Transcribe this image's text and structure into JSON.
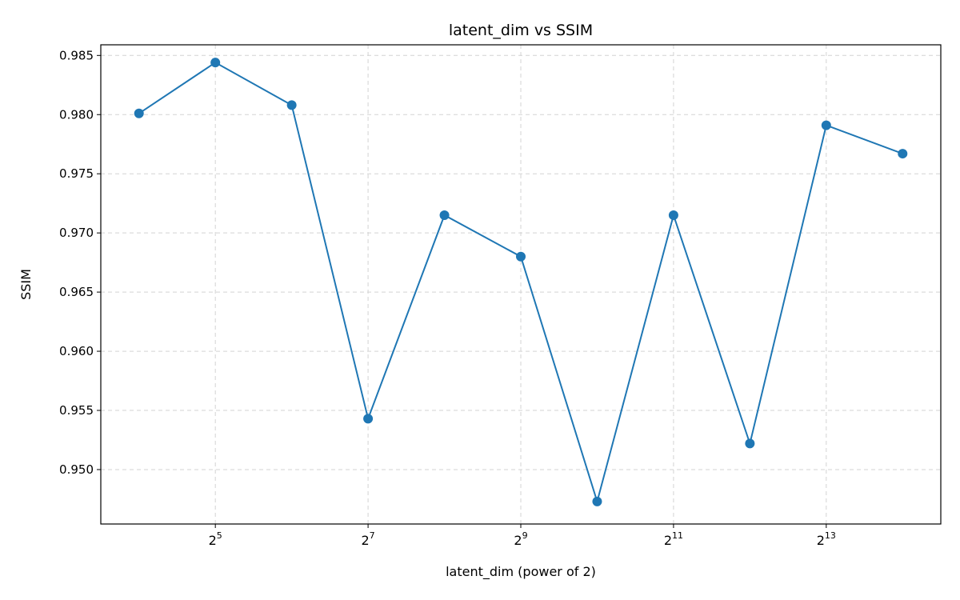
{
  "chart_data": {
    "type": "line",
    "title": "latent_dim vs SSIM",
    "xlabel": "latent_dim (power of 2)",
    "ylabel": "SSIM",
    "x_scale": "log2",
    "x": [
      16,
      32,
      64,
      128,
      256,
      512,
      1024,
      2048,
      4096,
      8192,
      16384
    ],
    "series": [
      {
        "values": [
          0.9801,
          0.9844,
          0.9808,
          0.9543,
          0.9715,
          0.968,
          0.9473,
          0.9715,
          0.9522,
          0.9791,
          0.9767
        ]
      }
    ],
    "x_ticks": [
      {
        "value": 32,
        "base": "2",
        "exp": "5"
      },
      {
        "value": 128,
        "base": "2",
        "exp": "7"
      },
      {
        "value": 512,
        "base": "2",
        "exp": "9"
      },
      {
        "value": 2048,
        "base": "2",
        "exp": "11"
      },
      {
        "value": 8192,
        "base": "2",
        "exp": "13"
      }
    ],
    "y_ticks": [
      "0.950",
      "0.955",
      "0.960",
      "0.965",
      "0.970",
      "0.975",
      "0.980",
      "0.985"
    ],
    "ylim": [
      0.9454,
      0.9859
    ],
    "xlim_exp": [
      3.5,
      14.5
    ],
    "grid": true,
    "line_color": "#1f77b4"
  }
}
